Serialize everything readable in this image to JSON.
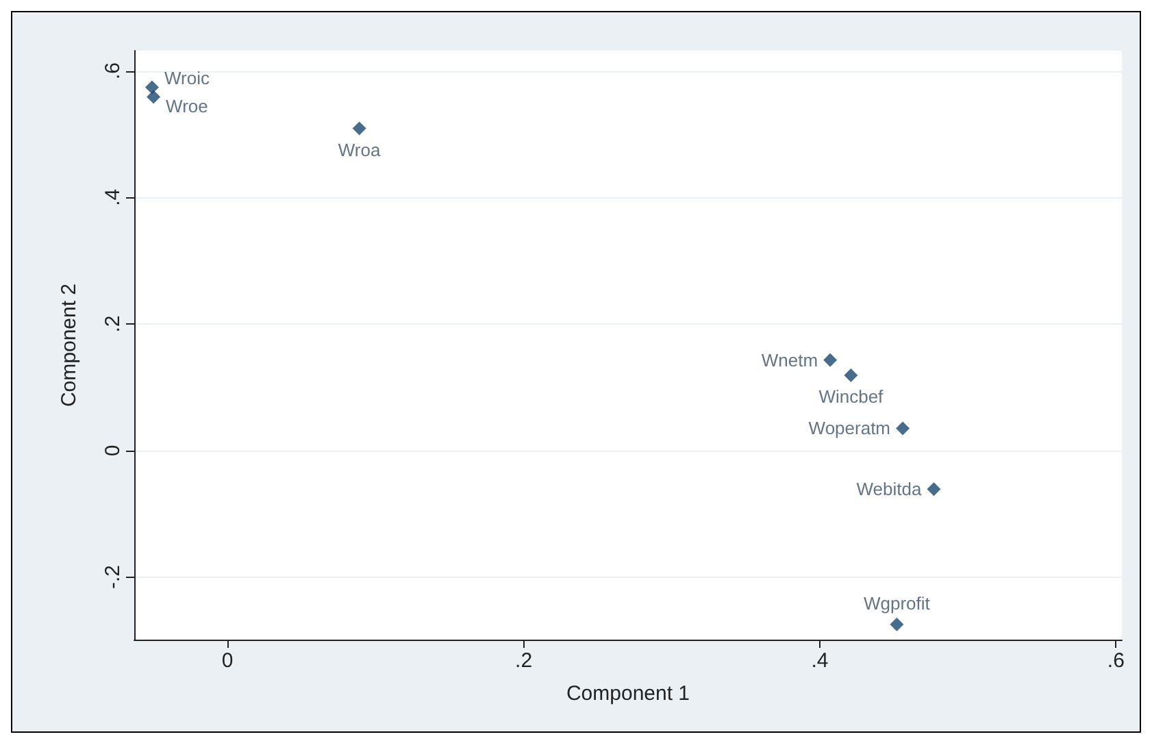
{
  "chart_data": {
    "type": "scatter",
    "xlabel": "Component 1",
    "ylabel": "Component 2",
    "xlim": [
      -0.063,
      0.604
    ],
    "ylim": [
      -0.299,
      0.632
    ],
    "xticks": [
      0,
      {
        "value": 0.2,
        "label": ".2"
      },
      {
        "value": 0.4,
        "label": ".4"
      },
      {
        "value": 0.6,
        "label": ".6"
      }
    ],
    "yticks": [
      {
        "value": -0.2,
        "label": "-.2"
      },
      0,
      {
        "value": 0.2,
        "label": ".2"
      },
      {
        "value": 0.4,
        "label": ".4"
      },
      {
        "value": 0.6,
        "label": ".6"
      }
    ],
    "grid": "y",
    "legend": false,
    "marker": "diamond",
    "series": [
      {
        "name": "Wroic",
        "color": "#1a476f",
        "x": [
          -0.051
        ],
        "values": [
          0.574
        ]
      },
      {
        "name": "Wroe",
        "color": "#1a476f",
        "x": [
          -0.05
        ],
        "values": [
          0.559
        ]
      },
      {
        "name": "Wroa",
        "color": "#1a476f",
        "x": [
          0.089
        ],
        "values": [
          0.509
        ]
      },
      {
        "name": "Wnetm",
        "color": "#1a476f",
        "x": [
          0.407
        ],
        "values": [
          0.143
        ]
      },
      {
        "name": "Wincbef",
        "color": "#1a476f",
        "x": [
          0.421
        ],
        "values": [
          0.119
        ]
      },
      {
        "name": "Woperatm",
        "color": "#1a476f",
        "x": [
          0.456
        ],
        "values": [
          0.035
        ]
      },
      {
        "name": "Webitda",
        "color": "#1a476f",
        "x": [
          0.477
        ],
        "values": [
          -0.061
        ]
      },
      {
        "name": "Wgprofit",
        "color": "#1a476f",
        "x": [
          0.452
        ],
        "values": [
          -0.275
        ]
      }
    ]
  }
}
